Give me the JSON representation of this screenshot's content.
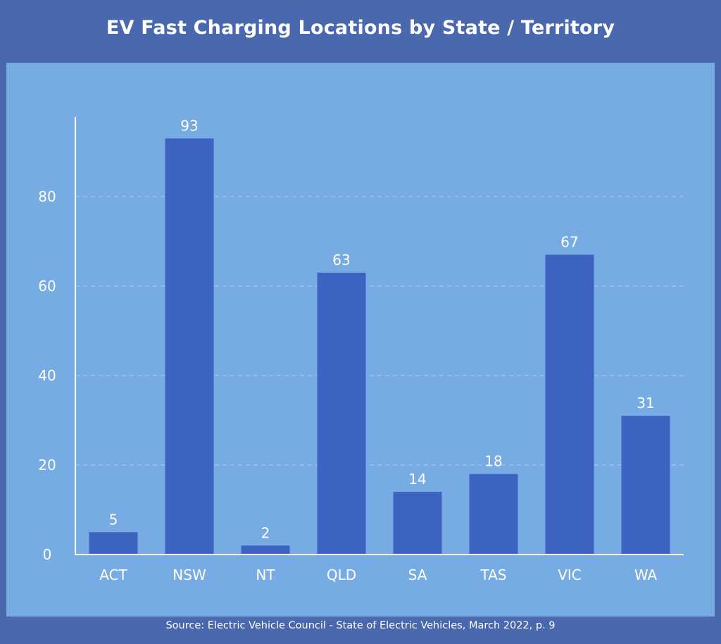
{
  "chart_data": {
    "type": "bar",
    "title": "EV Fast Charging Locations by State / Territory",
    "source": "Source: Electric Vehicle Council - State of Electric Vehicles, March 2022, p. 9",
    "categories": [
      "ACT",
      "NSW",
      "NT",
      "QLD",
      "SA",
      "TAS",
      "VIC",
      "WA"
    ],
    "values": [
      5,
      93,
      2,
      63,
      14,
      18,
      67,
      31
    ],
    "xlabel": "",
    "ylabel": "",
    "ylim": [
      0,
      97.8
    ],
    "yticks": [
      0,
      20,
      40,
      60,
      80
    ],
    "grid": true,
    "data_labels": true,
    "colors": {
      "background": "#4a68ad",
      "panel": "#76ace3",
      "bar": "#3d63c0",
      "text": "#ffffff"
    }
  }
}
